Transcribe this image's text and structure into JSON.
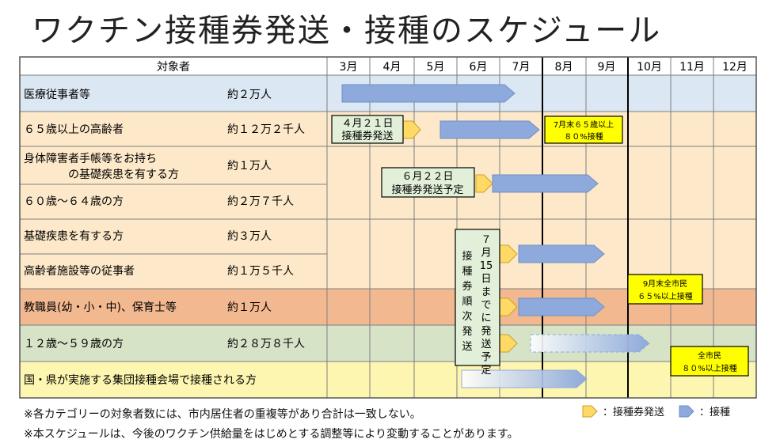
{
  "title": "ワクチン接種券発送・接種のスケジュール",
  "header": {
    "target": "対象者"
  },
  "months": [
    "3月",
    "4月",
    "5月",
    "6月",
    "7月",
    "8月",
    "9月",
    "10月",
    "11月",
    "12月"
  ],
  "rows": [
    {
      "name": "医療従事者等",
      "count": "約２万人"
    },
    {
      "name": "６５歳以上の高齢者",
      "count": "約１２万２千人"
    },
    {
      "name_line1": "身体障害者手帳等をお持ち",
      "name_line2": "の基礎疾患を有する方",
      "count": "約１万人"
    },
    {
      "name": "６０歳～６４歳の方",
      "count": "約２万７千人"
    },
    {
      "name": "基礎疾患を有する方",
      "count": "約３万人"
    },
    {
      "name": "高齢者施設等の従事者",
      "count": "約１万５千人"
    },
    {
      "name": "教職員(幼・小・中)、保育士等",
      "count": "約１万人"
    },
    {
      "name": "１２歳～５９歳の方",
      "count": "約２８万８千人"
    },
    {
      "name": "国・県が実施する集団接種会場で接種される方",
      "count": ""
    }
  ],
  "callouts": {
    "april21_line1": "４月２１日",
    "april21_line2": "接種券発送",
    "june22_line1": "６月２２日",
    "june22_line2": "接種券発送予定",
    "july15_col1": "接種券順次発送",
    "july15_col2": "７月15日までに発送予定",
    "goal1_line1": "7月末６５歳以上",
    "goal1_line2": "８０%接種",
    "goal2_line1": "9月末全市民",
    "goal2_line2": "６５%以上接種",
    "goal3_line1": "全市民",
    "goal3_line2": "８０%以上接種"
  },
  "notes": {
    "note1": "※各カテゴリーの対象者数には、市内居住者の重複等があり合計は一致しない。",
    "note2": "※本スケジュールは、今後のワクチン供給量をはじめとする調整等により変動することがあります。"
  },
  "legend": {
    "dispatch": "：接種券発送",
    "vaccination": "：接種"
  },
  "colors": {
    "row_blue": "#dbe7f3",
    "row_cream": "#fde9c9",
    "row_orange": "#f2b890",
    "row_green": "#d6e3c7",
    "row_yellow": "#fdf6b0",
    "arrow_blue": "#8ea9db",
    "arrow_gold": "#ffd966",
    "callout_green": "#e2f0d9",
    "goal_yellow": "#ffff00"
  }
}
